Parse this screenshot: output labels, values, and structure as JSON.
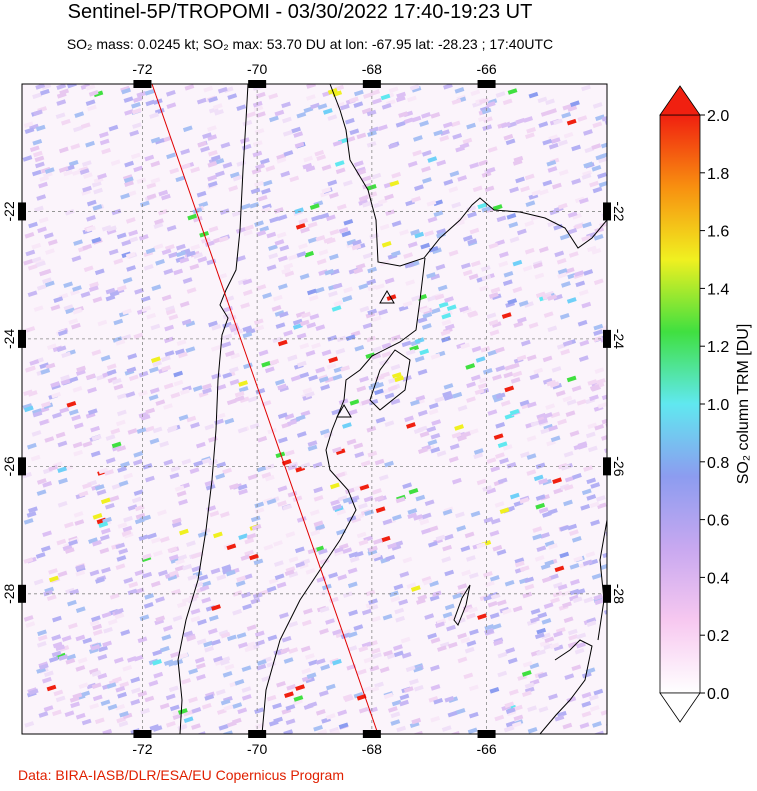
{
  "header": {
    "title": "Sentinel-5P/TROPOMI - 03/30/2022 17:40-19:23 UT",
    "subtitle": "SO₂ mass: 0.0245 kt; SO₂ max: 53.70 DU at lon: -67.95 lat: -28.23 ; 17:40UTC"
  },
  "map": {
    "xlim": [
      -74.1,
      -63.9
    ],
    "ylim": [
      -30.2,
      -20.0
    ],
    "xticks": [
      -72,
      -70,
      -68,
      -66
    ],
    "yticks": [
      -22,
      -24,
      -26,
      -28
    ]
  },
  "colorbar": {
    "label": "SO₂ column TRM [DU]",
    "lim": [
      0,
      2
    ],
    "ticks": [
      {
        "value": 0,
        "label": "0.0"
      },
      0.2,
      0.4,
      0.6,
      0.8,
      {
        "value": 1,
        "label": "1.0"
      },
      1.2,
      1.4,
      1.6,
      1.8,
      {
        "value": 2,
        "label": "2.0"
      }
    ],
    "colors": [
      "#ffffff",
      "#f7c8f0",
      "#c8a8f0",
      "#8c9cf0",
      "#60e8f0",
      "#40e040",
      "#f0f020",
      "#f89010",
      "#f02010"
    ]
  },
  "footer": {
    "credit": "Data: BIRA-IASB/DLR/ESA/EU Copernicus Program"
  }
}
